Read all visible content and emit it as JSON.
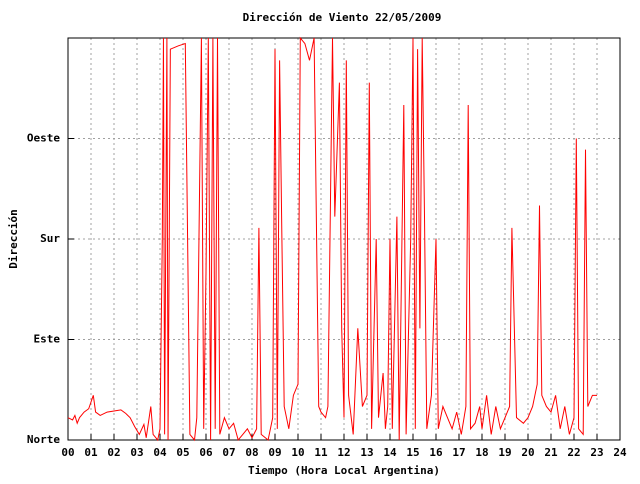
{
  "chart_data": {
    "type": "line",
    "title": "Dirección de Viento 22/05/2009",
    "xlabel": "Tiempo (Hora Local Argentina)",
    "ylabel": "Dirección",
    "xlim": [
      0,
      24
    ],
    "xticks": [
      {
        "value": 0,
        "label": "00"
      },
      {
        "value": 1,
        "label": "01"
      },
      {
        "value": 2,
        "label": "02"
      },
      {
        "value": 3,
        "label": "03"
      },
      {
        "value": 4,
        "label": "04"
      },
      {
        "value": 5,
        "label": "05"
      },
      {
        "value": 6,
        "label": "06"
      },
      {
        "value": 7,
        "label": "07"
      },
      {
        "value": 8,
        "label": "08"
      },
      {
        "value": 9,
        "label": "09"
      },
      10,
      11,
      12,
      13,
      14,
      15,
      16,
      17,
      18,
      19,
      20,
      21,
      22,
      23,
      24
    ],
    "ylim": [
      0,
      360
    ],
    "yticks": [
      {
        "value": 0,
        "label": "Norte"
      },
      {
        "value": 90,
        "label": "Este"
      },
      {
        "value": 180,
        "label": "Sur"
      },
      {
        "value": 270,
        "label": "Oeste"
      }
    ],
    "grid": true,
    "series": [
      {
        "color": "#ff0000",
        "x": [
          0.0,
          0.2,
          0.3,
          0.4,
          0.5,
          0.7,
          0.9,
          1.1,
          1.2,
          1.4,
          1.7,
          2.0,
          2.3,
          2.5,
          2.7,
          2.9,
          3.1,
          3.3,
          3.4,
          3.6,
          3.7,
          3.9,
          4.0,
          4.1,
          4.15,
          4.2,
          4.3,
          4.35,
          4.45,
          4.8,
          5.1,
          5.2,
          5.3,
          5.5,
          5.6,
          5.8,
          5.9,
          6.0,
          6.1,
          6.2,
          6.3,
          6.4,
          6.5,
          6.6,
          6.8,
          7.0,
          7.2,
          7.4,
          7.6,
          7.8,
          8.0,
          8.2,
          8.3,
          8.4,
          8.7,
          8.9,
          9.0,
          9.1,
          9.2,
          9.3,
          9.4,
          9.6,
          9.8,
          10.0,
          10.1,
          10.3,
          10.5,
          10.7,
          10.9,
          11.0,
          11.2,
          11.3,
          11.5,
          11.6,
          11.8,
          11.9,
          12.0,
          12.1,
          12.2,
          12.4,
          12.6,
          12.8,
          13.0,
          13.1,
          13.2,
          13.4,
          13.5,
          13.7,
          13.8,
          13.9,
          14.0,
          14.1,
          14.3,
          14.4,
          14.6,
          14.7,
          14.9,
          15.0,
          15.1,
          15.2,
          15.3,
          15.4,
          15.5,
          15.6,
          15.8,
          16.0,
          16.1,
          16.3,
          16.5,
          16.7,
          16.9,
          17.1,
          17.3,
          17.4,
          17.5,
          17.7,
          17.9,
          18.0,
          18.2,
          18.4,
          18.6,
          18.8,
          19.0,
          19.2,
          19.3,
          19.5,
          19.8,
          20.0,
          20.2,
          20.4,
          20.5,
          20.6,
          20.8,
          21.0,
          21.2,
          21.4,
          21.6,
          21.8,
          22.0,
          22.1,
          22.2,
          22.4,
          22.5,
          22.6,
          22.8,
          23.0
        ],
        "values": [
          20,
          18,
          22,
          15,
          20,
          25,
          28,
          40,
          25,
          22,
          25,
          26,
          27,
          24,
          20,
          12,
          5,
          14,
          2,
          30,
          5,
          0,
          10,
          180,
          360,
          5,
          360,
          0,
          350,
          353,
          355,
          180,
          5,
          0,
          20,
          360,
          10,
          150,
          360,
          0,
          360,
          10,
          360,
          5,
          20,
          10,
          15,
          0,
          5,
          10,
          2,
          10,
          190,
          5,
          0,
          20,
          350,
          10,
          340,
          180,
          30,
          10,
          40,
          50,
          360,
          355,
          340,
          360,
          30,
          25,
          20,
          30,
          360,
          200,
          320,
          100,
          20,
          340,
          40,
          5,
          100,
          30,
          40,
          320,
          10,
          180,
          20,
          60,
          10,
          30,
          180,
          10,
          200,
          0,
          300,
          5,
          180,
          360,
          10,
          350,
          100,
          360,
          200,
          10,
          40,
          180,
          10,
          30,
          20,
          10,
          25,
          5,
          30,
          300,
          10,
          15,
          30,
          10,
          40,
          5,
          30,
          10,
          20,
          30,
          190,
          20,
          15,
          20,
          30,
          50,
          210,
          40,
          30,
          25,
          40,
          10,
          30,
          5,
          20,
          270,
          10,
          5,
          260,
          30,
          40,
          40
        ]
      }
    ]
  }
}
